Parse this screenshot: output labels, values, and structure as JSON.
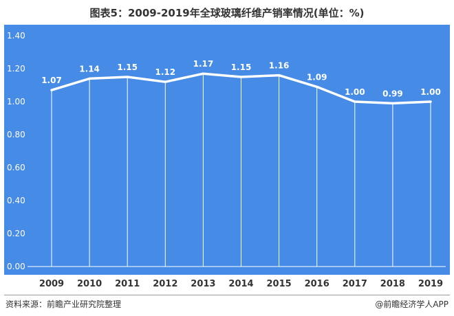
{
  "title": "图表5：2009-2019年全球玻璃纤维产销率情况(单位：%)",
  "footer": {
    "source": "资料来源：前瞻产业研究院整理",
    "brand": "@前瞻经济学人APP"
  },
  "colors": {
    "plot_background": "#468be5",
    "line": "#ffffff",
    "gridline": "#ffffff",
    "text": "#333333",
    "label": "#ffffff"
  },
  "chart_data": {
    "type": "line",
    "title": "图表5：2009-2019年全球玻璃纤维产销率情况(单位：%)",
    "xlabel": "",
    "ylabel": "",
    "categories": [
      "2009",
      "2010",
      "2011",
      "2012",
      "2013",
      "2014",
      "2015",
      "2016",
      "2017",
      "2018",
      "2019"
    ],
    "values": [
      1.07,
      1.14,
      1.15,
      1.12,
      1.17,
      1.15,
      1.16,
      1.09,
      1.0,
      0.99,
      1.0
    ],
    "value_labels": [
      "1.07",
      "1.14",
      "1.15",
      "1.12",
      "1.17",
      "1.15",
      "1.16",
      "1.09",
      "1.00",
      "0.99",
      "1.00"
    ],
    "ylim": [
      0,
      1.4
    ],
    "yticks": [
      "0.00",
      "0.20",
      "0.40",
      "0.60",
      "0.80",
      "1.00",
      "1.20",
      "1.40"
    ],
    "grid": "vertical",
    "legend": "none"
  }
}
